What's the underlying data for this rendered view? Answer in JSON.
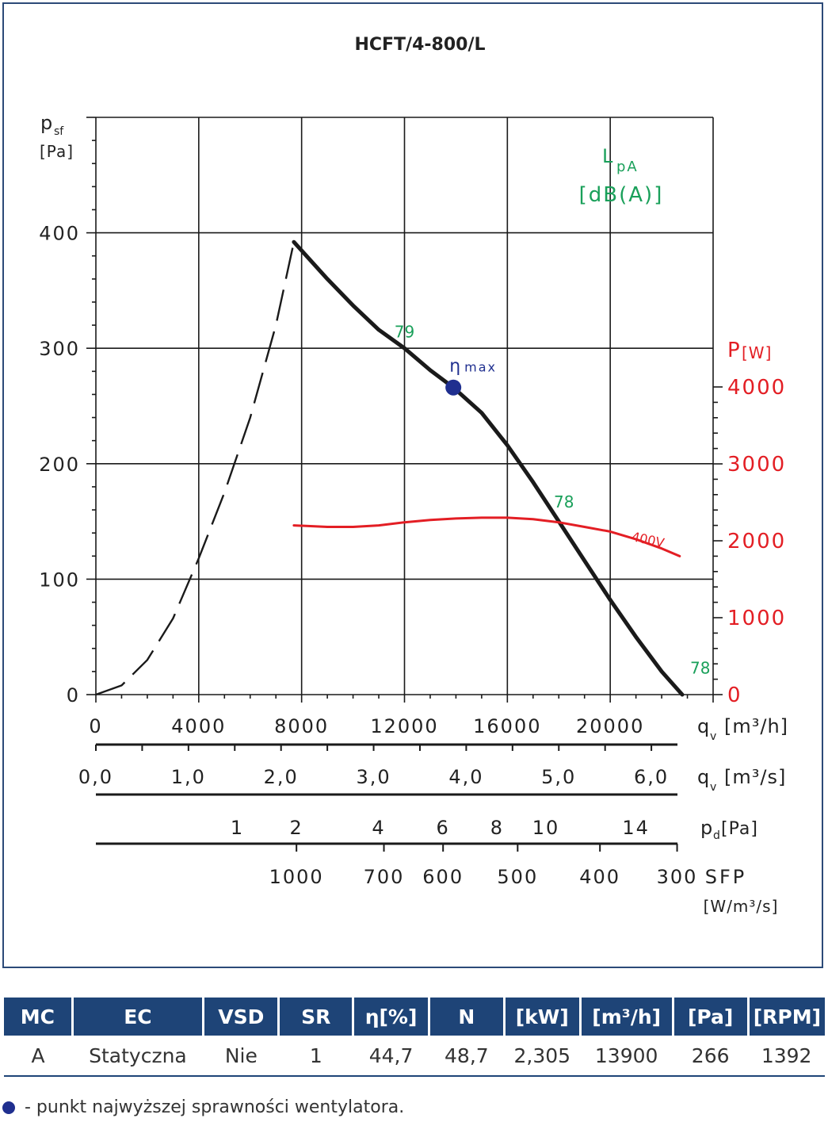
{
  "chart_data": {
    "type": "line",
    "title": "HCFT/4-800/L",
    "ylabel_main": "p",
    "ylabel_sub": "sf",
    "ylabel_unit": "[Pa]",
    "ylim": [
      0,
      500
    ],
    "yticks": [
      "0",
      "100",
      "200",
      "300",
      "400"
    ],
    "xlim": [
      0,
      24000
    ],
    "xticks": [
      "0",
      "4000",
      "8000",
      "12000",
      "16000",
      "20000"
    ],
    "x_unit_main": "q",
    "x_unit_sub": "v",
    "x_unit": "[m³/h]",
    "y2_label": "P",
    "y2_unit": "[W]",
    "y2lim": [
      0,
      4000
    ],
    "y2ticks": [
      "0",
      "1000",
      "2000",
      "3000",
      "4000"
    ],
    "lpa_label_main": "L",
    "lpa_label_sub": "pA",
    "lpa_unit": "[dB(A)]",
    "axis_qs": {
      "label_main": "q",
      "label_sub": "v",
      "unit": "[m³/s]",
      "ticks": [
        {
          "label": "0,0",
          "value": 0.0
        },
        {
          "label": "1,0",
          "value": 1.0
        },
        {
          "label": "2,0",
          "value": 2.0
        },
        {
          "label": "3,0",
          "value": 3.0
        },
        {
          "label": "4,0",
          "value": 4.0
        },
        {
          "label": "5,0",
          "value": 5.0
        },
        {
          "label": "6,0",
          "value": 6.0
        }
      ]
    },
    "axis_pd": {
      "label_main": "p",
      "label_sub": "d",
      "unit": "[Pa]",
      "ticks": [
        {
          "label": "1",
          "value": 5500
        },
        {
          "label": "2",
          "value": 7800
        },
        {
          "label": "4",
          "value": 11000
        },
        {
          "label": "6",
          "value": 13500
        },
        {
          "label": "8",
          "value": 15600
        },
        {
          "label": "10",
          "value": 17500
        },
        {
          "label": "14",
          "value": 21000
        }
      ]
    },
    "axis_sfp": {
      "label": "SFP",
      "unit": "[W/m³/s]",
      "ticks": [
        {
          "label": "1000",
          "value": 7800
        },
        {
          "label": "700",
          "value": 11200
        },
        {
          "label": "600",
          "value": 13500
        },
        {
          "label": "500",
          "value": 16400
        },
        {
          "label": "400",
          "value": 19600
        },
        {
          "label": "300",
          "value": 22600
        }
      ]
    },
    "series": [
      {
        "name": "",
        "style": "dashed",
        "color": "#1a1a1a",
        "x": [
          0,
          1000,
          2000,
          3000,
          4000,
          5000,
          6000,
          7000,
          7700
        ],
        "y": [
          0,
          8,
          30,
          66,
          118,
          175,
          240,
          320,
          392
        ]
      },
      {
        "name": "",
        "style": "solid",
        "color": "#1a1a1a",
        "x": [
          7700,
          9000,
          10000,
          11000,
          12000,
          13000,
          13900,
          15000,
          16000,
          17000,
          18000,
          19000,
          20000,
          21000,
          22000,
          22800
        ],
        "y": [
          392,
          360,
          337,
          316,
          300,
          281,
          266,
          244,
          216,
          184,
          150,
          116,
          82,
          50,
          20,
          0
        ]
      },
      {
        "name": "400V",
        "style": "solid",
        "color": "#e31e24",
        "axis": "y2",
        "x": [
          7700,
          9000,
          10000,
          11000,
          12000,
          13000,
          14000,
          15000,
          16000,
          17000,
          18000,
          19000,
          20000,
          21000,
          22000,
          22700
        ],
        "y": [
          2200,
          2180,
          2180,
          2200,
          2240,
          2270,
          2290,
          2300,
          2300,
          2280,
          2240,
          2180,
          2120,
          2020,
          1900,
          1800
        ]
      }
    ],
    "sound_labels": [
      {
        "text": "79",
        "x": 12000,
        "y": 301
      },
      {
        "text": "78",
        "x": 18200,
        "y": 154
      },
      {
        "text": "78",
        "x": 23500,
        "y": 10
      }
    ],
    "eta_max": {
      "label": "η",
      "label_sub": "max",
      "x": 13900,
      "y": 266
    }
  },
  "table": {
    "headers": [
      "MC",
      "EC",
      "VSD",
      "SR",
      "η[%]",
      "N",
      "[kW]",
      "[m³/h]",
      "[Pa]",
      "[RPM]"
    ],
    "rows": [
      [
        "A",
        "Statyczna",
        "Nie",
        "1",
        "44,7",
        "48,7",
        "2,305",
        "13900",
        "266",
        "1392"
      ]
    ]
  },
  "footnote": "- punkt najwyższej sprawności wentylatora.",
  "colors": {
    "accent": "#1e4477",
    "power": "#e31e24",
    "sound": "#1aa05a",
    "eta": "#1f2f8f"
  }
}
